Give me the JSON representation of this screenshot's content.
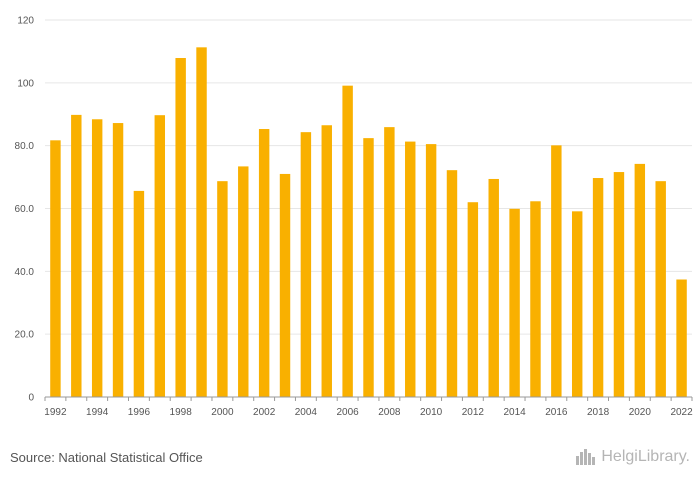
{
  "chart_data": {
    "type": "bar",
    "categories": [
      "1992",
      "1993",
      "1994",
      "1995",
      "1996",
      "1997",
      "1998",
      "1999",
      "2000",
      "2001",
      "2002",
      "2003",
      "2004",
      "2005",
      "2006",
      "2007",
      "2008",
      "2009",
      "2010",
      "2011",
      "2012",
      "2013",
      "2014",
      "2015",
      "2016",
      "2017",
      "2018",
      "2019",
      "2020",
      "2021",
      "2022"
    ],
    "x_tick_labels": [
      "1992",
      "1994",
      "1996",
      "1998",
      "2000",
      "2002",
      "2004",
      "2006",
      "2008",
      "2010",
      "2012",
      "2014",
      "2016",
      "2018",
      "2020",
      "2022"
    ],
    "values": [
      81.7,
      89.8,
      88.4,
      87.2,
      65.6,
      89.7,
      107.9,
      111.3,
      68.7,
      73.4,
      85.3,
      71.0,
      84.3,
      86.5,
      99.1,
      82.4,
      85.9,
      81.3,
      80.5,
      72.2,
      62.0,
      69.4,
      59.9,
      62.3,
      80.1,
      59.1,
      69.7,
      71.6,
      74.2,
      68.7,
      37.4
    ],
    "y_tick_labels": [
      "0",
      "20.0",
      "40.0",
      "60.0",
      "80.0",
      "100",
      "120"
    ],
    "ylim": [
      0,
      120
    ],
    "bar_color": "#f9b000",
    "grid": true
  },
  "footer": {
    "source": "Source: National Statistical Office",
    "logo_text": "HelgiLibrary."
  }
}
